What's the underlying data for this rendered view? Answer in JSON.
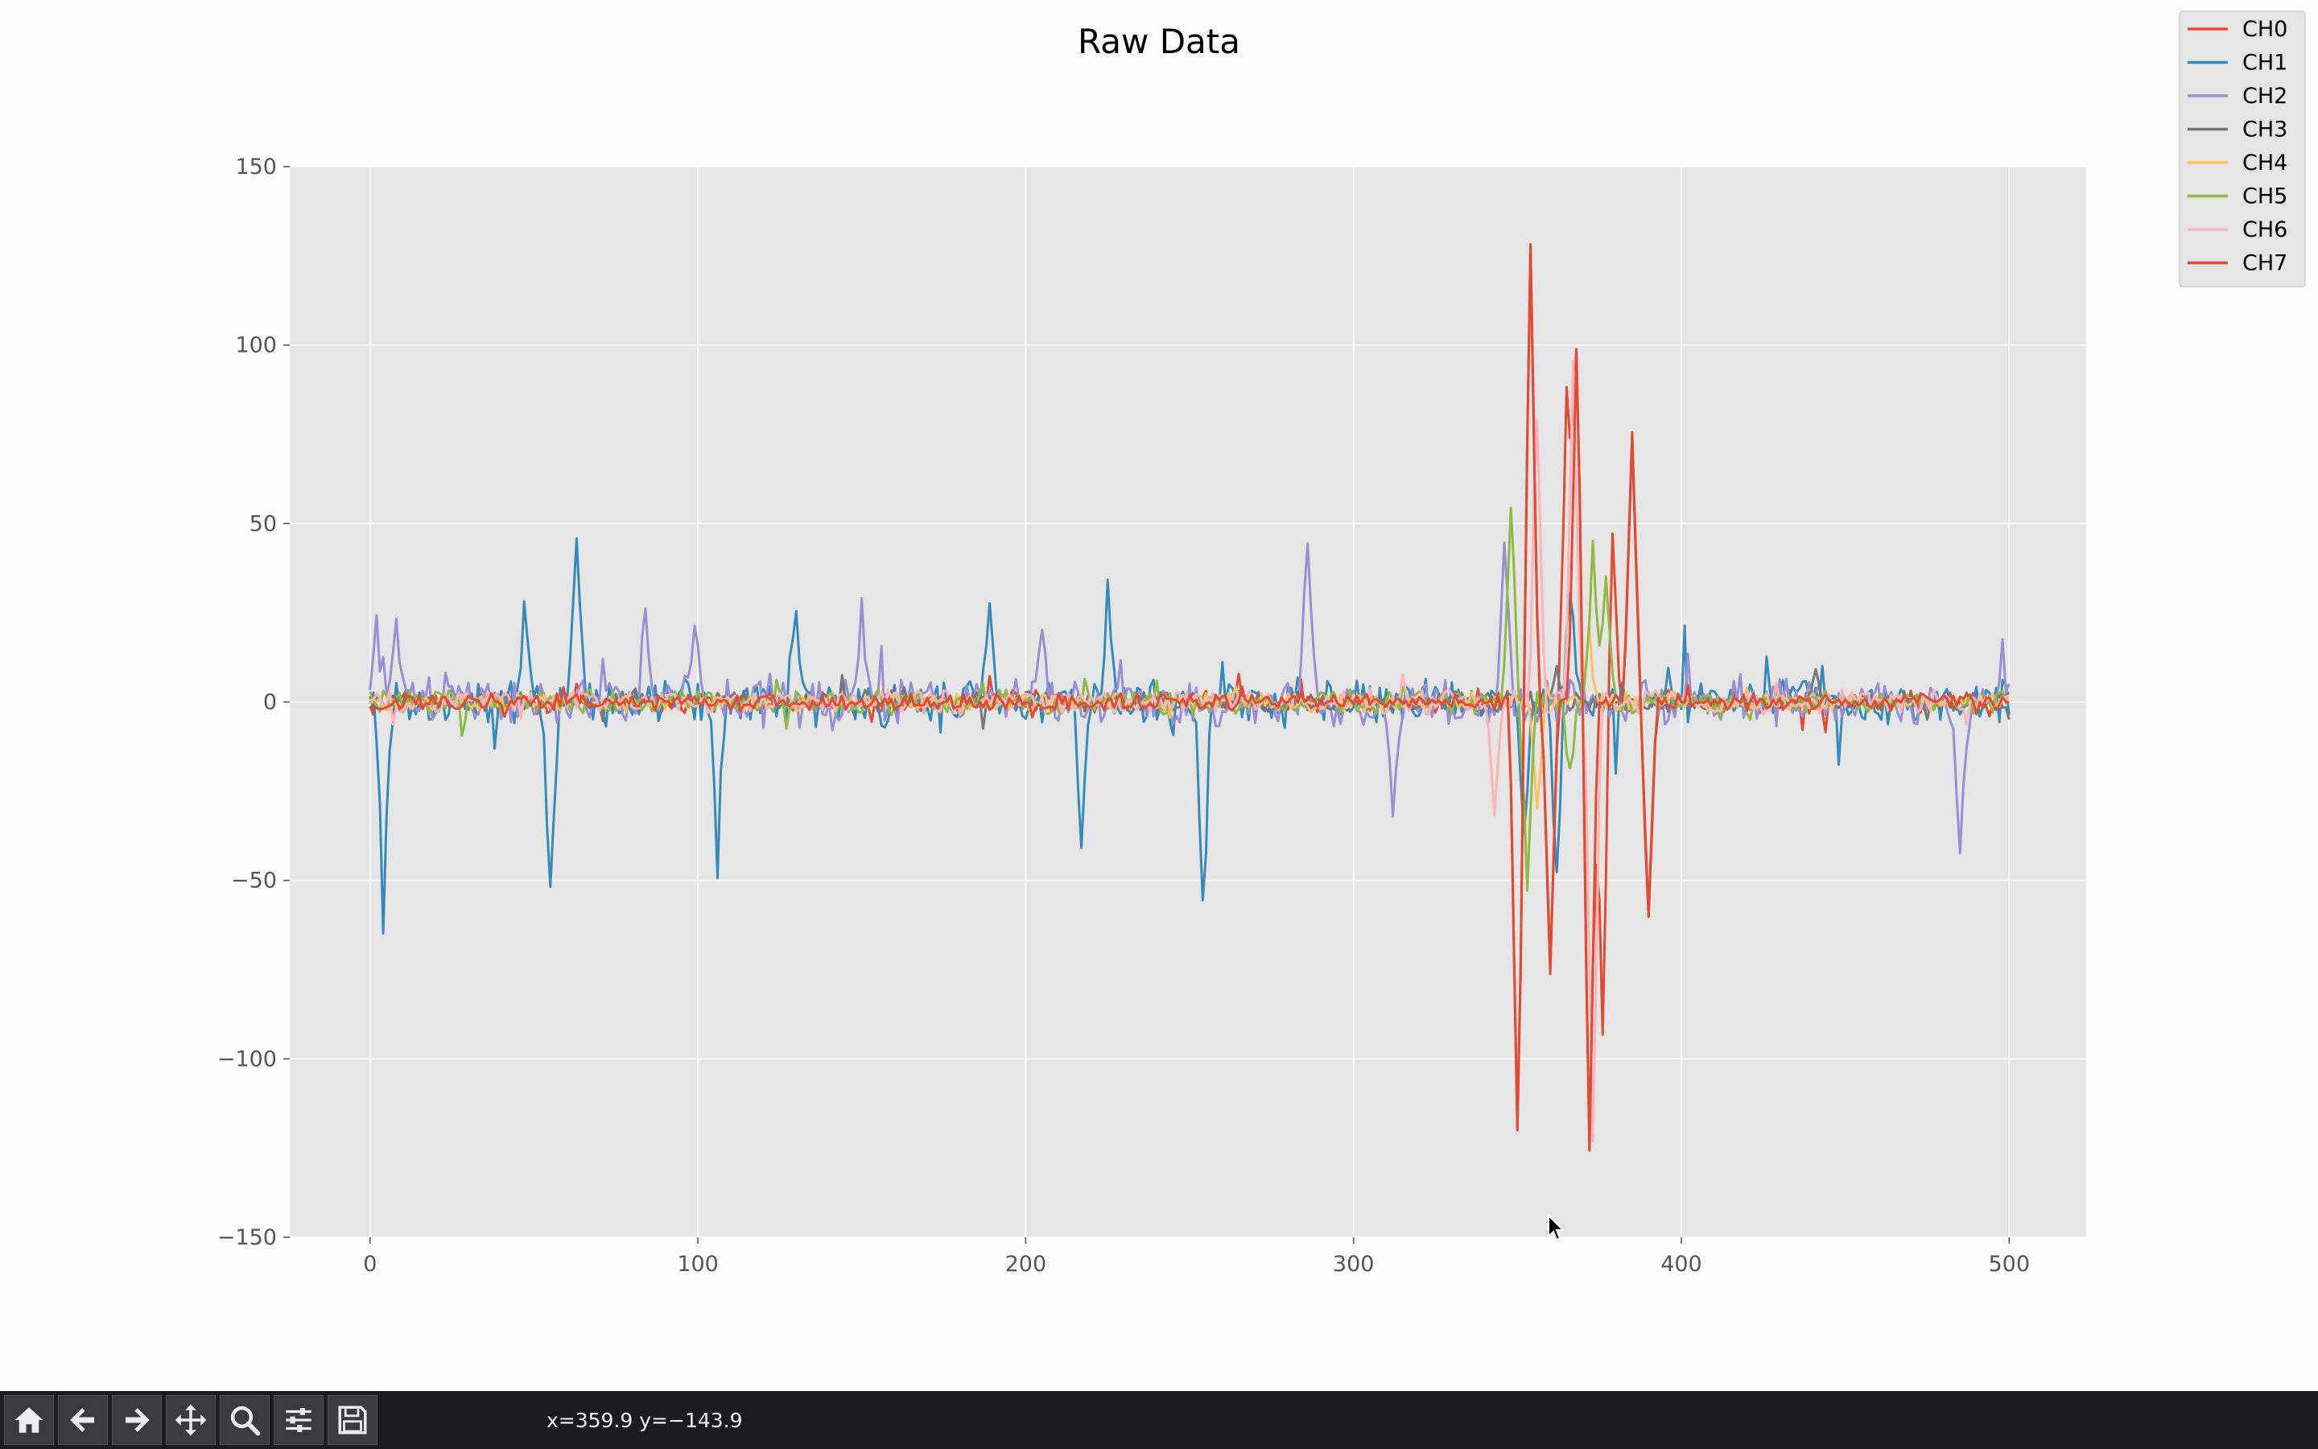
{
  "window": {
    "toolbar": {
      "buttons": [
        {
          "id": "home",
          "icon": "home-icon",
          "tooltip": "Reset original view"
        },
        {
          "id": "back",
          "icon": "back-arrow-icon",
          "tooltip": "Back to previous view"
        },
        {
          "id": "forward",
          "icon": "forward-arrow-icon",
          "tooltip": "Forward to next view"
        },
        {
          "id": "pan",
          "icon": "move-icon",
          "tooltip": "Pan axes"
        },
        {
          "id": "zoom",
          "icon": "magnifier-icon",
          "tooltip": "Zoom to rectangle"
        },
        {
          "id": "configure",
          "icon": "sliders-icon",
          "tooltip": "Configure subplots"
        },
        {
          "id": "save",
          "icon": "floppy-disk-icon",
          "tooltip": "Save the figure"
        }
      ],
      "coords_text": "x=359.9 y=−143.9"
    }
  },
  "chart_data": {
    "type": "line",
    "title": "Raw Data",
    "xlabel": "",
    "ylabel": "",
    "xlim": [
      -24.5,
      523.5
    ],
    "ylim": [
      -150,
      150
    ],
    "xticks": [
      0,
      100,
      200,
      300,
      400,
      500
    ],
    "yticks": [
      -150,
      -100,
      -50,
      0,
      50,
      100,
      150
    ],
    "xtick_labels": [
      "0",
      "100",
      "200",
      "300",
      "400",
      "500"
    ],
    "ytick_labels": [
      "−150",
      "−100",
      "−50",
      "0",
      "50",
      "100",
      "150"
    ],
    "grid": true,
    "style": "ggplot",
    "legend_position": "top-right",
    "n_samples": 501,
    "series": [
      {
        "name": "CH0",
        "color": "#E24A33",
        "noise": 2.5,
        "spikes": [
          [
            350,
            -120
          ],
          [
            354,
            125
          ],
          [
            360,
            -75
          ],
          [
            365,
            90
          ],
          [
            368,
            98
          ],
          [
            372,
            -125
          ],
          [
            376,
            -95
          ],
          [
            379,
            45
          ],
          [
            385,
            75
          ],
          [
            390,
            -62
          ]
        ]
      },
      {
        "name": "CH1",
        "color": "#348ABD",
        "noise": 5,
        "spikes": [
          [
            4,
            -58
          ],
          [
            47,
            27
          ],
          [
            55,
            -53
          ],
          [
            63,
            44
          ],
          [
            106,
            -35
          ],
          [
            130,
            27
          ],
          [
            189,
            25
          ],
          [
            217,
            -42
          ],
          [
            225,
            30
          ],
          [
            254,
            -60
          ],
          [
            352,
            -40
          ],
          [
            362,
            -45
          ],
          [
            366,
            36
          ]
        ]
      },
      {
        "name": "CH2",
        "color": "#988ED5",
        "noise": 5,
        "spikes": [
          [
            2,
            18
          ],
          [
            8,
            20
          ],
          [
            84,
            30
          ],
          [
            99,
            20
          ],
          [
            150,
            25
          ],
          [
            205,
            20
          ],
          [
            286,
            45
          ],
          [
            312,
            -35
          ],
          [
            346,
            45
          ],
          [
            485,
            -40
          ],
          [
            498,
            12
          ]
        ]
      },
      {
        "name": "CH3",
        "color": "#777777",
        "noise": 2,
        "spikes": [
          [
            362,
            8
          ],
          [
            441,
            10
          ]
        ]
      },
      {
        "name": "CH4",
        "color": "#FBC15E",
        "noise": 2,
        "spikes": [
          [
            356,
            -30
          ],
          [
            372,
            20
          ]
        ]
      },
      {
        "name": "CH5",
        "color": "#8EBA42",
        "noise": 2.5,
        "spikes": [
          [
            348,
            56
          ],
          [
            353,
            -50
          ],
          [
            366,
            -20
          ],
          [
            373,
            42
          ],
          [
            377,
            36
          ]
        ]
      },
      {
        "name": "CH6",
        "color": "#FFB5B8",
        "noise": 2.5,
        "spikes": [
          [
            343,
            -30
          ],
          [
            356,
            80
          ],
          [
            367,
            94
          ],
          [
            373,
            -125
          ]
        ]
      },
      {
        "name": "CH7",
        "color": "#E24A33",
        "noise": 1.8,
        "spikes": [
          [
            350,
            -120
          ],
          [
            354,
            125
          ],
          [
            360,
            -75
          ],
          [
            368,
            98
          ],
          [
            372,
            -125
          ],
          [
            385,
            75
          ],
          [
            390,
            -62
          ]
        ]
      }
    ]
  }
}
